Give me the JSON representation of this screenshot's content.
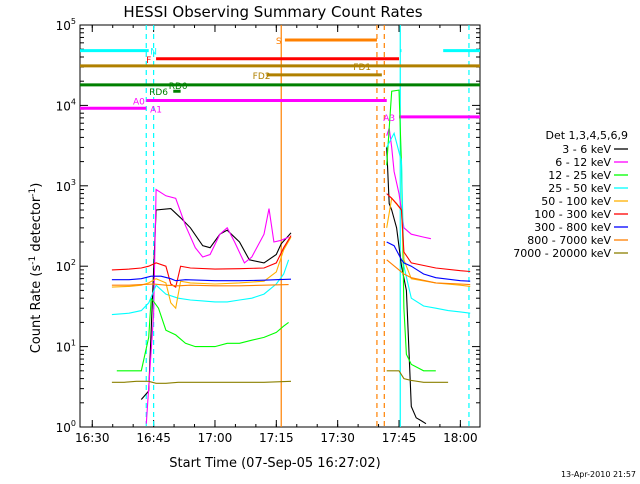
{
  "chart_data": {
    "type": "line",
    "title": "HESSI Observing Summary Count Rates",
    "xlabel": "Start Time (07-Sep-05 16:27:02)",
    "ylabel_main": "Count Rate (s",
    "ylabel_sup1": "-1",
    "ylabel_mid": " detector",
    "ylabel_sup2": "-1",
    "ylabel_end": ")",
    "x_unit": "minutes",
    "xlim": [
      16.45,
      18.08
    ],
    "ylim": [
      1,
      100000
    ],
    "yscale": "log",
    "x_ticks": [
      {
        "t": 16.5,
        "label": "16:30"
      },
      {
        "t": 16.75,
        "label": "16:45"
      },
      {
        "t": 17.0,
        "label": "17:00"
      },
      {
        "t": 17.25,
        "label": "17:15"
      },
      {
        "t": 17.5,
        "label": "17:30"
      },
      {
        "t": 17.75,
        "label": "17:45"
      },
      {
        "t": 18.0,
        "label": "18:00"
      }
    ],
    "y_ticks": [
      {
        "v": 1,
        "base": "10",
        "exp": "0"
      },
      {
        "v": 10,
        "base": "10",
        "exp": "1"
      },
      {
        "v": 100,
        "base": "10",
        "exp": "2"
      },
      {
        "v": 1000,
        "base": "10",
        "exp": "3"
      },
      {
        "v": 10000,
        "base": "10",
        "exp": "4"
      },
      {
        "v": 100000,
        "base": "10",
        "exp": "5"
      }
    ],
    "legend_title": "Det 1,3,4,5,6,9",
    "legend_position": "right",
    "series": [
      {
        "name": "3 - 6 keV",
        "color": "#000000",
        "points": [
          [
            16.7,
            2.2
          ],
          [
            16.73,
            2.8
          ],
          [
            16.76,
            500
          ],
          [
            16.82,
            520
          ],
          [
            16.86,
            400
          ],
          [
            16.9,
            300
          ],
          [
            16.95,
            180
          ],
          [
            16.98,
            170
          ],
          [
            17.02,
            250
          ],
          [
            17.05,
            280
          ],
          [
            17.1,
            200
          ],
          [
            17.14,
            120
          ],
          [
            17.2,
            110
          ],
          [
            17.25,
            140
          ],
          [
            17.27,
            190
          ],
          [
            17.3,
            240
          ],
          [
            17.31,
            260
          ],
          [
            17.69,
            null
          ],
          [
            17.7,
            3000
          ],
          [
            17.71,
            600
          ],
          [
            17.72,
            500
          ],
          [
            17.74,
            300
          ],
          [
            17.76,
            100
          ],
          [
            17.78,
            50
          ],
          [
            17.8,
            1.8
          ],
          [
            17.82,
            1.3
          ],
          [
            17.84,
            1.2
          ],
          [
            17.86,
            1.1
          ]
        ]
      },
      {
        "name": "6 - 12 keV",
        "color": "#ff00ff",
        "points": [
          [
            16.72,
            1.1
          ],
          [
            16.75,
            25
          ],
          [
            16.76,
            900
          ],
          [
            16.8,
            750
          ],
          [
            16.84,
            700
          ],
          [
            16.88,
            320
          ],
          [
            16.92,
            170
          ],
          [
            16.95,
            130
          ],
          [
            16.98,
            140
          ],
          [
            17.02,
            250
          ],
          [
            17.05,
            300
          ],
          [
            17.08,
            200
          ],
          [
            17.12,
            110
          ],
          [
            17.15,
            130
          ],
          [
            17.2,
            250
          ],
          [
            17.22,
            520
          ],
          [
            17.24,
            200
          ],
          [
            17.27,
            210
          ],
          [
            17.3,
            230
          ],
          [
            17.69,
            null
          ],
          [
            17.7,
            4200
          ],
          [
            17.71,
            5200
          ],
          [
            17.72,
            3000
          ],
          [
            17.73,
            1500
          ],
          [
            17.75,
            800
          ],
          [
            17.77,
            300
          ],
          [
            17.8,
            250
          ],
          [
            17.85,
            230
          ],
          [
            17.88,
            220
          ]
        ]
      },
      {
        "name": "12 - 25 keV",
        "color": "#00ff00",
        "points": [
          [
            16.6,
            5
          ],
          [
            16.7,
            5
          ],
          [
            16.73,
            13
          ],
          [
            16.74,
            40
          ],
          [
            16.77,
            30
          ],
          [
            16.8,
            16
          ],
          [
            16.84,
            14
          ],
          [
            16.88,
            11
          ],
          [
            16.92,
            10
          ],
          [
            16.96,
            10
          ],
          [
            17.0,
            10
          ],
          [
            17.05,
            11
          ],
          [
            17.1,
            11
          ],
          [
            17.15,
            12
          ],
          [
            17.2,
            13
          ],
          [
            17.25,
            15
          ],
          [
            17.28,
            18
          ],
          [
            17.3,
            20
          ],
          [
            17.69,
            null
          ],
          [
            17.7,
            1800
          ],
          [
            17.72,
            15000
          ],
          [
            17.75,
            15500
          ],
          [
            17.76,
            1800
          ],
          [
            17.77,
            30
          ],
          [
            17.78,
            8
          ],
          [
            17.8,
            6
          ],
          [
            17.85,
            5
          ],
          [
            17.9,
            5
          ]
        ]
      },
      {
        "name": "25 - 50 keV",
        "color": "#00ffff",
        "points": [
          [
            16.58,
            25
          ],
          [
            16.65,
            26
          ],
          [
            16.7,
            28
          ],
          [
            16.73,
            35
          ],
          [
            16.76,
            58
          ],
          [
            16.8,
            45
          ],
          [
            16.85,
            40
          ],
          [
            16.9,
            38
          ],
          [
            16.95,
            37
          ],
          [
            17.0,
            36
          ],
          [
            17.05,
            36
          ],
          [
            17.1,
            38
          ],
          [
            17.15,
            40
          ],
          [
            17.2,
            45
          ],
          [
            17.25,
            60
          ],
          [
            17.28,
            80
          ],
          [
            17.3,
            120
          ],
          [
            17.69,
            null
          ],
          [
            17.7,
            3000
          ],
          [
            17.73,
            4500
          ],
          [
            17.76,
            2000
          ],
          [
            17.77,
            100
          ],
          [
            17.8,
            40
          ],
          [
            17.85,
            32
          ],
          [
            17.9,
            30
          ],
          [
            17.95,
            28
          ],
          [
            18.0,
            27
          ],
          [
            18.04,
            26
          ]
        ]
      },
      {
        "name": "50 - 100 keV",
        "color": "#ffb000",
        "points": [
          [
            16.58,
            55
          ],
          [
            16.65,
            56
          ],
          [
            16.7,
            58
          ],
          [
            16.73,
            62
          ],
          [
            16.76,
            70
          ],
          [
            16.8,
            62
          ],
          [
            16.82,
            35
          ],
          [
            16.84,
            30
          ],
          [
            16.86,
            65
          ],
          [
            16.9,
            62
          ],
          [
            17.0,
            60
          ],
          [
            17.1,
            62
          ],
          [
            17.2,
            65
          ],
          [
            17.25,
            85
          ],
          [
            17.28,
            160
          ],
          [
            17.31,
            230
          ],
          [
            17.69,
            null
          ],
          [
            17.7,
            300
          ],
          [
            17.72,
            700
          ],
          [
            17.76,
            500
          ],
          [
            17.77,
            120
          ],
          [
            17.8,
            70
          ],
          [
            17.9,
            62
          ],
          [
            18.0,
            58
          ],
          [
            18.04,
            56
          ]
        ]
      },
      {
        "name": "100 - 300 keV",
        "color": "#ff0000",
        "points": [
          [
            16.58,
            90
          ],
          [
            16.65,
            92
          ],
          [
            16.7,
            95
          ],
          [
            16.73,
            100
          ],
          [
            16.76,
            110
          ],
          [
            16.8,
            100
          ],
          [
            16.82,
            60
          ],
          [
            16.84,
            55
          ],
          [
            16.86,
            100
          ],
          [
            16.9,
            95
          ],
          [
            17.0,
            92
          ],
          [
            17.1,
            93
          ],
          [
            17.2,
            95
          ],
          [
            17.25,
            110
          ],
          [
            17.28,
            170
          ],
          [
            17.31,
            240
          ],
          [
            17.69,
            null
          ],
          [
            17.7,
            800
          ],
          [
            17.72,
            700
          ],
          [
            17.74,
            600
          ],
          [
            17.76,
            500
          ],
          [
            17.77,
            150
          ],
          [
            17.8,
            110
          ],
          [
            17.9,
            95
          ],
          [
            18.0,
            88
          ],
          [
            18.04,
            86
          ]
        ]
      },
      {
        "name": "300 - 800 keV",
        "color": "#0000ff",
        "points": [
          [
            16.58,
            68
          ],
          [
            16.65,
            68
          ],
          [
            16.7,
            70
          ],
          [
            16.74,
            75
          ],
          [
            16.78,
            75
          ],
          [
            16.82,
            70
          ],
          [
            16.84,
            66
          ],
          [
            16.88,
            68
          ],
          [
            17.0,
            66
          ],
          [
            17.1,
            66
          ],
          [
            17.2,
            67
          ],
          [
            17.25,
            68
          ],
          [
            17.31,
            69
          ],
          [
            17.69,
            null
          ],
          [
            17.7,
            200
          ],
          [
            17.73,
            180
          ],
          [
            17.76,
            120
          ],
          [
            17.77,
            110
          ],
          [
            17.8,
            100
          ],
          [
            17.85,
            80
          ],
          [
            17.9,
            72
          ],
          [
            18.0,
            66
          ],
          [
            18.04,
            65
          ]
        ]
      },
      {
        "name": "800 - 7000 keV",
        "color": "#ff8000",
        "points": [
          [
            16.58,
            58
          ],
          [
            16.65,
            58
          ],
          [
            16.7,
            59
          ],
          [
            16.75,
            60
          ],
          [
            16.8,
            58
          ],
          [
            16.85,
            57
          ],
          [
            16.9,
            58
          ],
          [
            17.0,
            57
          ],
          [
            17.1,
            57
          ],
          [
            17.2,
            58
          ],
          [
            17.3,
            59
          ],
          [
            17.69,
            null
          ],
          [
            17.7,
            120
          ],
          [
            17.75,
            90
          ],
          [
            17.77,
            80
          ],
          [
            17.8,
            72
          ],
          [
            17.9,
            62
          ],
          [
            18.0,
            60
          ],
          [
            18.04,
            59
          ]
        ]
      },
      {
        "name": "7000 - 20000 keV",
        "color": "#8b8000",
        "points": [
          [
            16.58,
            3.6
          ],
          [
            16.63,
            3.6
          ],
          [
            16.68,
            3.7
          ],
          [
            16.73,
            3.7
          ],
          [
            16.76,
            3.5
          ],
          [
            16.8,
            3.5
          ],
          [
            16.85,
            3.6
          ],
          [
            16.9,
            3.6
          ],
          [
            17.0,
            3.6
          ],
          [
            17.1,
            3.6
          ],
          [
            17.2,
            3.6
          ],
          [
            17.31,
            3.7
          ],
          [
            17.69,
            null
          ],
          [
            17.7,
            5
          ],
          [
            17.75,
            5
          ],
          [
            17.77,
            4
          ],
          [
            17.8,
            3.8
          ],
          [
            17.85,
            3.6
          ],
          [
            17.9,
            3.6
          ],
          [
            17.95,
            3.6
          ]
        ]
      }
    ],
    "flag_bars": [
      {
        "label": "N",
        "color": "#00ffff",
        "y": 48000,
        "segments": [
          [
            16.45,
            16.73
          ],
          [
            17.755,
            17.76
          ],
          [
            17.93,
            18.08
          ]
        ],
        "label_x": 16.75
      },
      {
        "label": "F",
        "color": "#ff0000",
        "y": 38000,
        "segments": [
          [
            16.76,
            17.75
          ]
        ],
        "label_x": 16.73
      },
      {
        "label": "FD1",
        "color": "#b08000",
        "y": 31000,
        "segments": [
          [
            16.45,
            18.08
          ]
        ],
        "label_x": 17.6
      },
      {
        "label": "FD2",
        "color": "#b08000",
        "y": 24000,
        "segments": [
          [
            17.21,
            17.68
          ]
        ],
        "label_x": 17.19
      },
      {
        "label": "RD0",
        "color": "#008000",
        "y": 18000,
        "segments": [
          [
            16.45,
            18.08
          ]
        ],
        "label_x": 16.85
      },
      {
        "label": "RD6",
        "color": "#008000",
        "y": 15000,
        "segments": [
          [
            16.83,
            16.86
          ]
        ],
        "label_x": 16.77
      },
      {
        "label": "A0",
        "color": "#ff00ff",
        "y": 11500,
        "segments": [
          [
            16.72,
            17.7
          ]
        ],
        "label_x": 16.69
      },
      {
        "label": "A1",
        "color": "#ff00ff",
        "y": 9200,
        "segments": [
          [
            16.45,
            16.72
          ]
        ],
        "label_x": 16.76
      },
      {
        "label": "A3",
        "color": "#ff00ff",
        "y": 7200,
        "segments": [
          [
            17.75,
            18.08
          ]
        ],
        "label_x": 17.71
      },
      {
        "label": "S",
        "color": "#ff8000",
        "y": 65000,
        "segments": [
          [
            17.285,
            17.66
          ]
        ],
        "label_x": 17.26
      }
    ],
    "vlines": [
      {
        "t": 16.72,
        "color": "#00ffff",
        "dash": true
      },
      {
        "t": 16.75,
        "color": "#00ffff",
        "dash": true
      },
      {
        "t": 17.27,
        "color": "#ff8000",
        "dash": false
      },
      {
        "t": 17.66,
        "color": "#ff8000",
        "dash": true
      },
      {
        "t": 17.69,
        "color": "#ff8000",
        "dash": true
      },
      {
        "t": 17.755,
        "color": "#00ffff",
        "dash": false
      },
      {
        "t": 18.035,
        "color": "#00ffff",
        "dash": true
      }
    ]
  },
  "footer_timestamp": "13-Apr-2010 21:57"
}
